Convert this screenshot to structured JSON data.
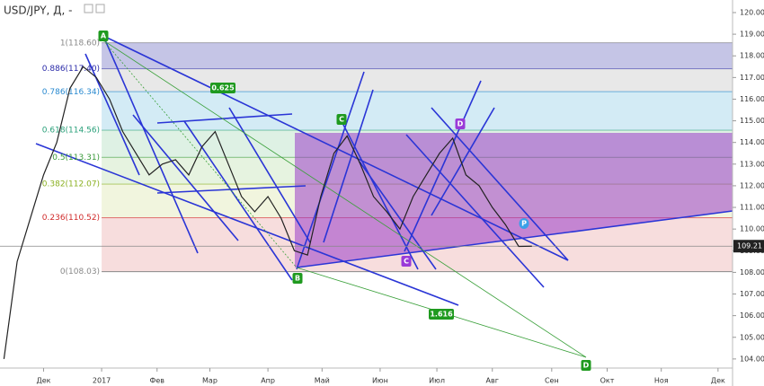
{
  "chart_data": {
    "type": "line",
    "title": "USD/JPY, Д, -",
    "series": [
      {
        "name": "USD/JPY",
        "color": "#222222",
        "x": [
          -3,
          -2,
          -1,
          0,
          1,
          2,
          3,
          4,
          5,
          6,
          7,
          8,
          9,
          10,
          11,
          12,
          13,
          14,
          15,
          16,
          17,
          18,
          19,
          20,
          21,
          22,
          23,
          24,
          25,
          26,
          27,
          28,
          29,
          30,
          31,
          32,
          33,
          34,
          35,
          36,
          37
        ],
        "values": [
          104.0,
          108.5,
          110.5,
          112.5,
          114.0,
          116.5,
          117.5,
          117.0,
          116.0,
          114.5,
          113.5,
          112.5,
          113.0,
          113.2,
          112.5,
          113.8,
          114.5,
          113.0,
          111.5,
          110.8,
          111.5,
          110.5,
          109.0,
          108.8,
          111.5,
          113.5,
          114.3,
          113.0,
          111.5,
          110.8,
          110.0,
          111.5,
          112.5,
          113.5,
          114.2,
          112.5,
          112.0,
          111.0,
          110.2,
          109.2,
          109.21
        ]
      }
    ],
    "last_price": {
      "value": 109.21,
      "label": "109.21"
    },
    "xlim": [
      -3.3,
      52.2
    ],
    "xticks": [
      {
        "value": 0,
        "label": "Дек"
      },
      {
        "value": 4.4,
        "label": "2017"
      },
      {
        "value": 8.6,
        "label": "Фев"
      },
      {
        "value": 12.6,
        "label": "Мар"
      },
      {
        "value": 17.0,
        "label": "Апр"
      },
      {
        "value": 21.1,
        "label": "Май"
      },
      {
        "value": 25.5,
        "label": "Июн"
      },
      {
        "value": 29.8,
        "label": "Июл"
      },
      {
        "value": 34.0,
        "label": "Авг"
      },
      {
        "value": 38.5,
        "label": "Сен"
      },
      {
        "value": 42.7,
        "label": "Окт"
      },
      {
        "value": 46.8,
        "label": "Ноя"
      },
      {
        "value": 51.1,
        "label": "Дек"
      }
    ],
    "ylim": [
      103.58,
      120.58
    ],
    "yticks": [
      {
        "value": 120,
        "label": "120.00"
      },
      {
        "value": 119,
        "label": "119.00"
      },
      {
        "value": 118,
        "label": "118.00"
      },
      {
        "value": 117,
        "label": "117.00"
      },
      {
        "value": 116,
        "label": "116.00"
      },
      {
        "value": 115,
        "label": "115.00"
      },
      {
        "value": 114,
        "label": "114.00"
      },
      {
        "value": 113,
        "label": "113.00"
      },
      {
        "value": 112,
        "label": "112.00"
      },
      {
        "value": 111,
        "label": "111.00"
      },
      {
        "value": 110,
        "label": "110.00"
      },
      {
        "value": 109,
        "label": "109.00"
      },
      {
        "value": 108,
        "label": "108.00"
      },
      {
        "value": 107,
        "label": "107.00"
      },
      {
        "value": 106,
        "label": "106.00"
      },
      {
        "value": 105,
        "label": "105.00"
      },
      {
        "value": 104,
        "label": "104.00"
      }
    ],
    "fib_levels": [
      {
        "value": 118.6,
        "label": "1(118.60)",
        "color": "#888888"
      },
      {
        "value": 117.4,
        "label": "0.886(117.40)",
        "color": "#2a2aa8",
        "band_color": "#b6b6e0"
      },
      {
        "value": 116.34,
        "label": "0.786(116.34)",
        "color": "#2a8ad0",
        "band_color": "#e2e2e2"
      },
      {
        "value": 114.56,
        "label": "0.618(114.56)",
        "color": "#2aa07a",
        "band_color": "#c8e6f2"
      },
      {
        "value": 113.31,
        "label": "0.5(113.31)",
        "color": "#3a9a3a",
        "band_color": "#d6eedd"
      },
      {
        "value": 112.07,
        "label": "0.382(112.07)",
        "color": "#8ab020",
        "band_color": "#e0f0d8"
      },
      {
        "value": 110.52,
        "label": "0.236(110.52)",
        "color": "#d02a2a",
        "band_color": "#eef3d6"
      },
      {
        "value": 108.03,
        "label": "0(108.03)",
        "color": "#888888",
        "band_color": "#f5d4d4"
      }
    ],
    "annotations": [
      "A",
      "B",
      "C",
      "D",
      "C",
      "D",
      "P",
      "0.625",
      "1.616"
    ]
  }
}
